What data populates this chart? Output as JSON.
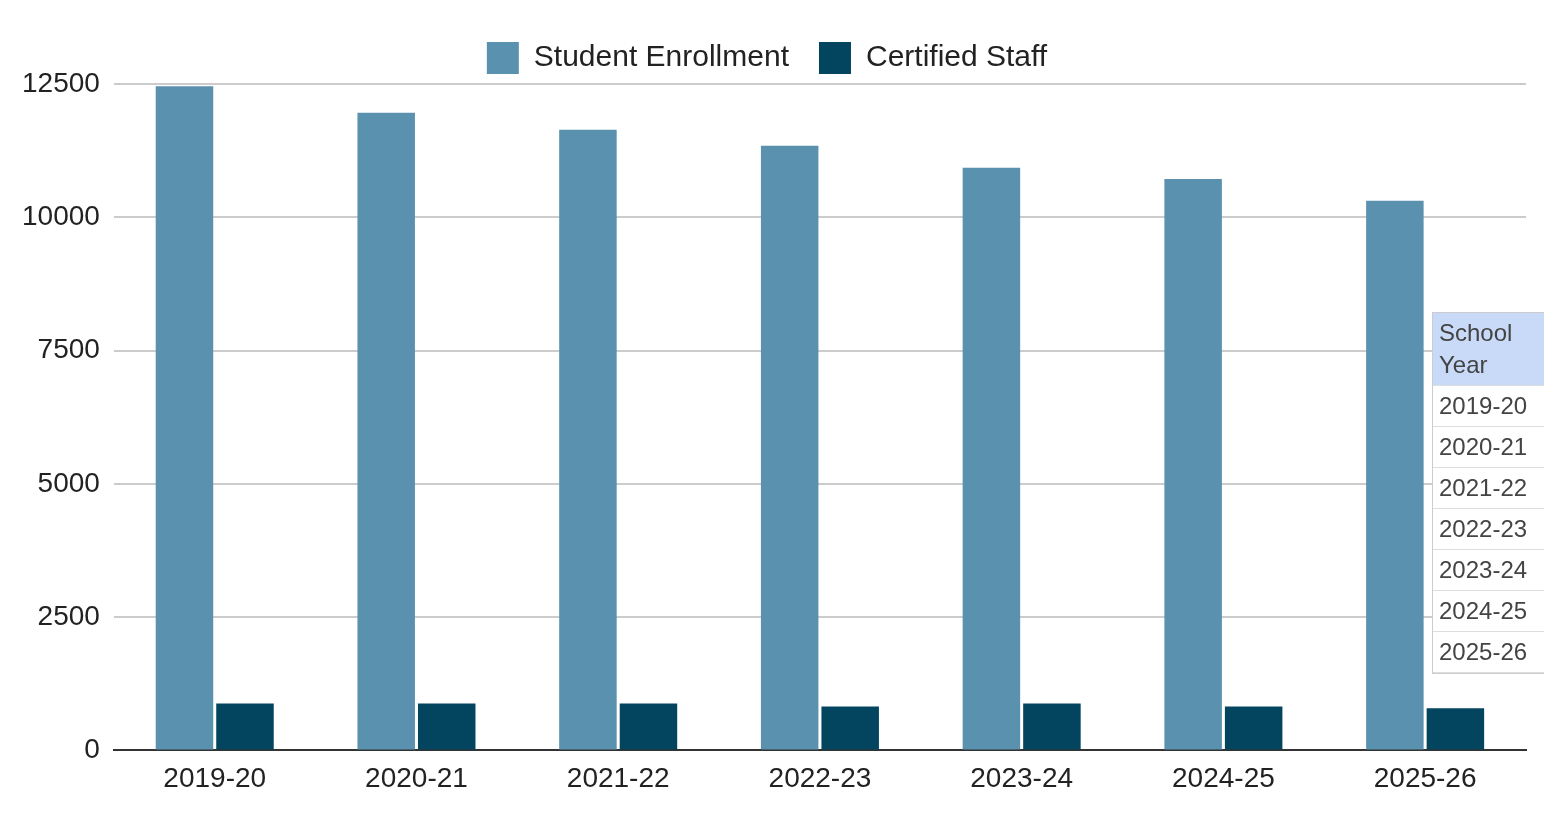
{
  "chart_data": {
    "type": "bar",
    "categories": [
      "2019-20",
      "2020-21",
      "2021-22",
      "2022-23",
      "2023-24",
      "2024-25",
      "2025-26"
    ],
    "series": [
      {
        "name": "Student Enrollment",
        "color": "#5a91ae",
        "values": [
          12460,
          11960,
          11640,
          11340,
          10930,
          10720,
          10310
        ]
      },
      {
        "name": "Certified Staff",
        "color": "#03445f",
        "values": [
          880,
          880,
          880,
          825,
          880,
          825,
          790
        ]
      }
    ],
    "ylim": [
      0,
      12500
    ],
    "yticks": [
      0,
      2500,
      5000,
      7500,
      10000,
      12500
    ],
    "grid": "y",
    "legend": "top",
    "annotations": [
      "School Year",
      "2019-20",
      "2020-21",
      "2021-22",
      "2022-23",
      "2023-24",
      "2024-25",
      "2025-26"
    ]
  }
}
